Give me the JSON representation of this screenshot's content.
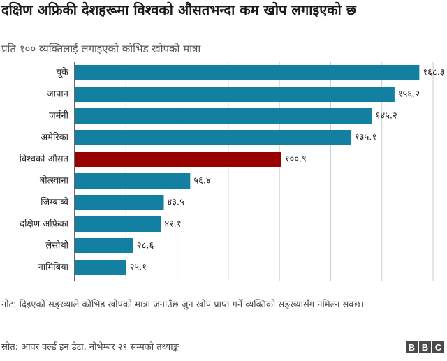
{
  "title": "दक्षिण अफ्रिकी देशहरूमा विश्वको औसतभन्दा कम खोप लगाइएको छ",
  "subtitle": "प्रति १०० व्यक्तिलाई लगाइएको कोभिड खोपको मात्रा",
  "note": "नोट: दिइएको सङ्ख्याले कोभिड खोपको मात्रा जनाउँछ जुन खोप प्राप्त गर्ने व्यक्तिको सङ्ख्यासँग नमिल्न सक्छ।",
  "source": "स्रोत: आवर वर्ल्ड इन डेटा, नोभेम्बर २९ सम्मको तथ्याङ्क",
  "logo": {
    "letters": [
      "B",
      "B",
      "C"
    ]
  },
  "colors": {
    "bar": "#1380A1",
    "highlight": "#990000",
    "grid": "#cbcbcb",
    "axis": "#333333"
  },
  "chart_data": {
    "type": "bar",
    "orientation": "horizontal",
    "title": "दक्षिण अफ्रिकी देशहरूमा विश्वको औसतभन्दा कम खोप लगाइएको छ",
    "subtitle": "प्रति १०० व्यक्तिलाई लगाइएको कोभिड खोपको मात्रा",
    "categories": [
      "यूके",
      "जापान",
      "जर्मनी",
      "अमेरिका",
      "विश्वको औसत",
      "बोत्स्वाना",
      "जिम्बाब्वे",
      "दक्षिण अफ्रिका",
      "लेसोथो",
      "नामिबिया"
    ],
    "values": [
      168.3,
      156.2,
      145.2,
      135.1,
      100.9,
      56.4,
      43.5,
      42.1,
      28.6,
      25.1
    ],
    "value_labels": [
      "१६८.३",
      "१५६.२",
      "१४५.२",
      "१३५.१",
      "१००.९",
      "५६.४",
      "४३.५",
      "४२.१",
      "२८.६",
      "२५.१"
    ],
    "highlight_category": "विश्वको औसत",
    "xlim": [
      0,
      175
    ],
    "grid": true,
    "legend": "none"
  }
}
